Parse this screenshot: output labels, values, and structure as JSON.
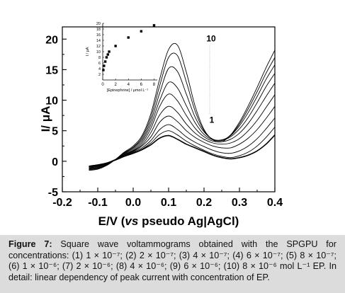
{
  "chart_data": [
    {
      "type": "line",
      "xlabel_prefix": "E/V (",
      "xlabel_italic": "vs",
      "xlabel_suffix": " pseudo Ag|AgCl)",
      "ylabel": "I/ μA",
      "xlim": [
        -0.2,
        0.4
      ],
      "ylim": [
        -5,
        22
      ],
      "xticks": [
        "-0.2",
        "-0.1",
        "0.0",
        "0.1",
        "0.2",
        "0.3",
        "0.4"
      ],
      "yticks": [
        "-5",
        "0",
        "5",
        "10",
        "15",
        "20"
      ],
      "annotations": [
        {
          "text": "10",
          "x": 0.22,
          "y": 19.6
        },
        {
          "text": "1",
          "x": 0.222,
          "y": 6.3
        }
      ],
      "x": [
        -0.125,
        -0.1,
        -0.075,
        -0.05,
        -0.025,
        0.0,
        0.025,
        0.05,
        0.075,
        0.1,
        0.125,
        0.15,
        0.175,
        0.2,
        0.225,
        0.25,
        0.275,
        0.3,
        0.325,
        0.35,
        0.375,
        0.4
      ],
      "series": [
        {
          "values": [
            -0.8,
            -0.6,
            -0.3,
            0.2,
            0.8,
            1.3,
            1.9,
            2.7,
            3.8,
            4.2,
            3.6,
            2.8,
            2.2,
            1.6,
            1.0,
            0.6,
            0.4,
            0.6,
            1.0,
            1.7,
            2.8,
            4.3
          ]
        },
        {
          "values": [
            -0.8,
            -0.6,
            -0.3,
            0.3,
            0.9,
            1.4,
            2.0,
            3.0,
            4.4,
            5.0,
            4.3,
            3.3,
            2.5,
            1.8,
            1.2,
            0.8,
            0.6,
            0.9,
            1.5,
            2.5,
            3.9,
            5.6
          ]
        },
        {
          "values": [
            -0.9,
            -0.7,
            -0.3,
            0.3,
            0.9,
            1.5,
            2.2,
            3.4,
            5.2,
            6.0,
            5.2,
            4.0,
            3.1,
            2.4,
            1.8,
            1.4,
            1.3,
            1.7,
            2.5,
            3.7,
            5.3,
            7.1
          ]
        },
        {
          "values": [
            -0.9,
            -0.7,
            -0.4,
            0.3,
            1.0,
            1.6,
            2.5,
            4.0,
            6.4,
            7.4,
            6.5,
            5.0,
            3.9,
            3.1,
            2.5,
            2.2,
            2.2,
            2.8,
            3.8,
            5.2,
            7.0,
            9.0
          ]
        },
        {
          "values": [
            -1.0,
            -0.8,
            -0.4,
            0.3,
            1.0,
            1.7,
            2.7,
            4.7,
            7.6,
            9.0,
            8.0,
            6.1,
            4.6,
            3.6,
            3.0,
            2.8,
            3.0,
            3.7,
            5.0,
            6.7,
            8.8,
            10.9
          ]
        },
        {
          "values": [
            -1.1,
            -0.9,
            -0.5,
            0.3,
            1.1,
            1.8,
            3.0,
            5.4,
            9.0,
            11.0,
            9.9,
            7.5,
            5.4,
            4.0,
            3.3,
            3.2,
            3.6,
            4.6,
            6.2,
            8.3,
            10.6,
            12.8
          ]
        },
        {
          "values": [
            -1.2,
            -1.0,
            -0.5,
            0.3,
            1.2,
            2.0,
            3.3,
            6.0,
            10.0,
            12.9,
            12.0,
            9.1,
            6.3,
            4.4,
            3.5,
            3.4,
            4.0,
            5.3,
            7.2,
            9.6,
            12.2,
            14.4
          ]
        },
        {
          "values": [
            -1.3,
            -1.1,
            -0.6,
            0.3,
            1.3,
            2.2,
            3.6,
            6.6,
            11.2,
            15.2,
            14.7,
            11.0,
            7.2,
            4.8,
            3.6,
            3.5,
            4.2,
            5.8,
            8.0,
            10.6,
            13.4,
            15.8
          ]
        },
        {
          "values": [
            -1.4,
            -1.2,
            -0.6,
            0.3,
            1.4,
            2.3,
            3.9,
            7.2,
            12.4,
            17.0,
            17.3,
            13.0,
            8.2,
            5.0,
            3.6,
            3.4,
            4.3,
            6.1,
            8.6,
            11.4,
            14.4,
            17.0
          ]
        },
        {
          "values": [
            -1.5,
            -1.3,
            -0.7,
            0.3,
            1.5,
            2.5,
            4.2,
            7.8,
            13.5,
            18.3,
            19.0,
            14.6,
            9.0,
            5.2,
            3.5,
            3.2,
            4.3,
            6.4,
            9.1,
            12.1,
            15.3,
            18.2
          ]
        }
      ]
    },
    {
      "type": "scatter",
      "xlabel": "[Epinephrine] / μmol L⁻¹",
      "ylabel": "I / μA",
      "xlim": [
        0,
        8.5
      ],
      "ylim": [
        0,
        20
      ],
      "xticks": [
        "0",
        "2",
        "4",
        "6",
        "8"
      ],
      "yticks": [
        "2",
        "4",
        "6",
        "8",
        "10",
        "12",
        "14",
        "16",
        "18",
        "20"
      ],
      "x": [
        0.1,
        0.2,
        0.4,
        0.6,
        0.8,
        1.0,
        2.0,
        4.0,
        6.0,
        8.0
      ],
      "y": [
        3.5,
        5.0,
        6.5,
        8.0,
        9.0,
        10.0,
        12.0,
        15.0,
        17.2,
        19.3
      ]
    }
  ],
  "caption": {
    "label": "Figure 7:",
    "text": "Square wave voltammograms obtained with the SPGPU for concentrations: (1) 1 × 10⁻⁷; (2) 2 × 10⁻⁷; (3) 4 × 10⁻⁷; (4) 6 × 10⁻⁷; (5) 8 × 10⁻⁷; (6) 1 × 10⁻⁶; (7) 2 × 10⁻⁶; (8) 4 × 10⁻⁶; (9) 6 × 10⁻⁶; (10) 8 × 10⁻⁶ mol L⁻¹ EP. In detail: linear dependency of peak current with concentration of EP."
  },
  "colors": {
    "line": "#000000",
    "caption_bg": "#dcdcdc"
  }
}
